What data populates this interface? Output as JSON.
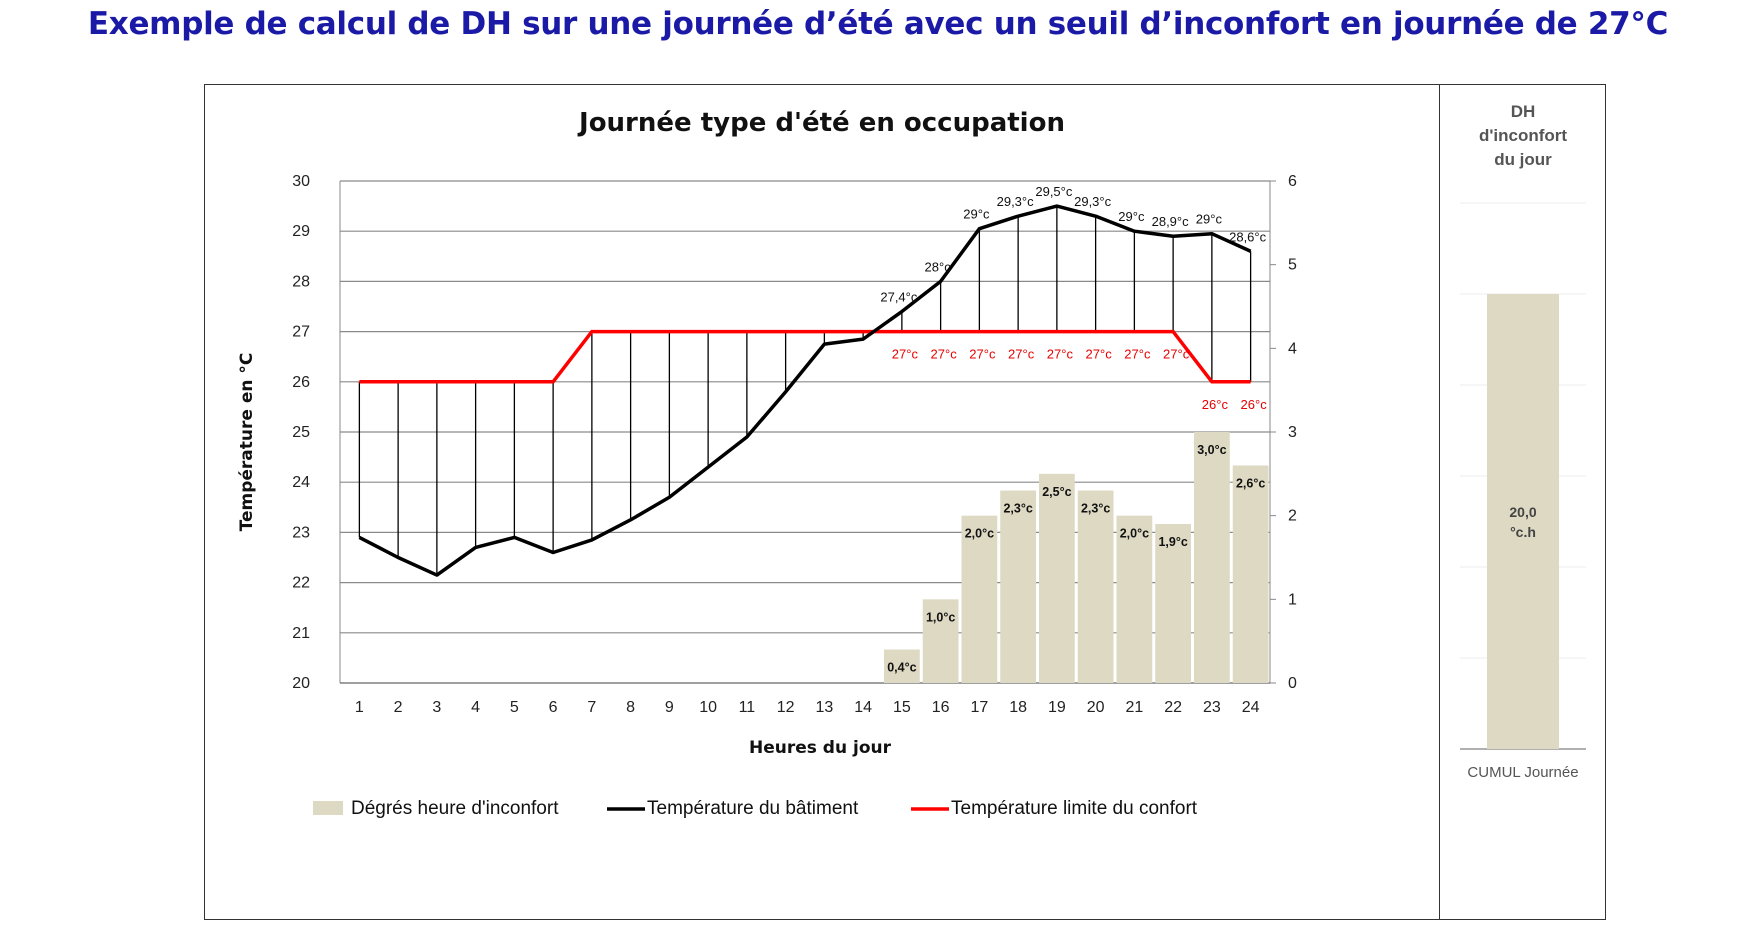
{
  "page": {
    "title": "Exemple de calcul de DH sur une journée d’été avec un seuil d’inconfort en journée de 27°C"
  },
  "chart_data": [
    {
      "type": "bar+line",
      "title": "Journée type d'été en occupation",
      "xlabel": "Heures du jour",
      "ylabel": "Température en °C",
      "categories": [
        "1",
        "2",
        "3",
        "4",
        "5",
        "6",
        "7",
        "8",
        "9",
        "10",
        "11",
        "12",
        "13",
        "14",
        "15",
        "16",
        "17",
        "18",
        "19",
        "20",
        "21",
        "22",
        "23",
        "24"
      ],
      "ylim": [
        20,
        30
      ],
      "yticks": [
        "20",
        "21",
        "22",
        "23",
        "24",
        "25",
        "26",
        "27",
        "28",
        "29",
        "30"
      ],
      "y2lim": [
        0,
        6
      ],
      "y2ticks": [
        "0",
        "1",
        "2",
        "3",
        "4",
        "5",
        "6"
      ],
      "grid": true,
      "legend_position": "bottom",
      "colors": {
        "bars": "#ddd9c3",
        "building": "#000000",
        "limit": "#ff0000"
      },
      "series": [
        {
          "name": "Dégrés heure d'inconfort",
          "type": "bar",
          "axis": "right",
          "values": [
            0,
            0,
            0,
            0,
            0,
            0,
            0,
            0,
            0,
            0,
            0,
            0,
            0,
            0,
            0.4,
            1.0,
            2.0,
            2.3,
            2.5,
            2.3,
            2.0,
            1.9,
            3.0,
            2.6
          ],
          "labels": [
            "",
            "",
            "",
            "",
            "",
            "",
            "",
            "",
            "",
            "",
            "",
            "",
            "",
            "",
            "0,4°c",
            "1,0°c",
            "2,0°c",
            "2,3°c",
            "2,5°c",
            "2,3°c",
            "2,0°c",
            "1,9°c",
            "3,0°c",
            "2,6°c"
          ]
        },
        {
          "name": "Température du bâtiment",
          "type": "line",
          "axis": "left",
          "values": [
            22.9,
            22.5,
            22.15,
            22.7,
            22.9,
            22.6,
            22.85,
            23.25,
            23.7,
            24.3,
            24.9,
            25.8,
            26.75,
            26.85,
            27.4,
            28.0,
            29.05,
            29.3,
            29.5,
            29.3,
            29.0,
            28.9,
            28.95,
            28.6
          ],
          "labels": [
            "",
            "",
            "",
            "",
            "",
            "",
            "",
            "",
            "",
            "",
            "",
            "",
            "",
            "",
            "27,4°c",
            "28°c",
            "29°c",
            "29,3°c",
            "29,5°c",
            "29,3°c",
            "29°c",
            "28,9°c",
            "29°c",
            "28,6°c"
          ]
        },
        {
          "name": "Température limite du confort",
          "type": "line",
          "axis": "left",
          "values": [
            26,
            26,
            26,
            26,
            26,
            26,
            27,
            27,
            27,
            27,
            27,
            27,
            27,
            27,
            27,
            27,
            27,
            27,
            27,
            27,
            27,
            27,
            26,
            26
          ],
          "labels": [
            "",
            "",
            "",
            "",
            "",
            "",
            "",
            "",
            "",
            "",
            "",
            "",
            "",
            "",
            "27°c",
            "27°c",
            "27°c",
            "27°c",
            "27°c",
            "27°c",
            "27°c",
            "27°c",
            "26°c",
            "26°c"
          ]
        }
      ]
    },
    {
      "type": "bar",
      "title": "DH d'inconfort du jour",
      "title_lines": [
        "DH",
        "d'inconfort",
        "du jour"
      ],
      "categories": [
        "CUMUL Journée"
      ],
      "values": [
        20.0
      ],
      "value_label_lines": [
        "20,0",
        "°c.h"
      ],
      "ylim": [
        0,
        24
      ],
      "grid": true
    }
  ]
}
